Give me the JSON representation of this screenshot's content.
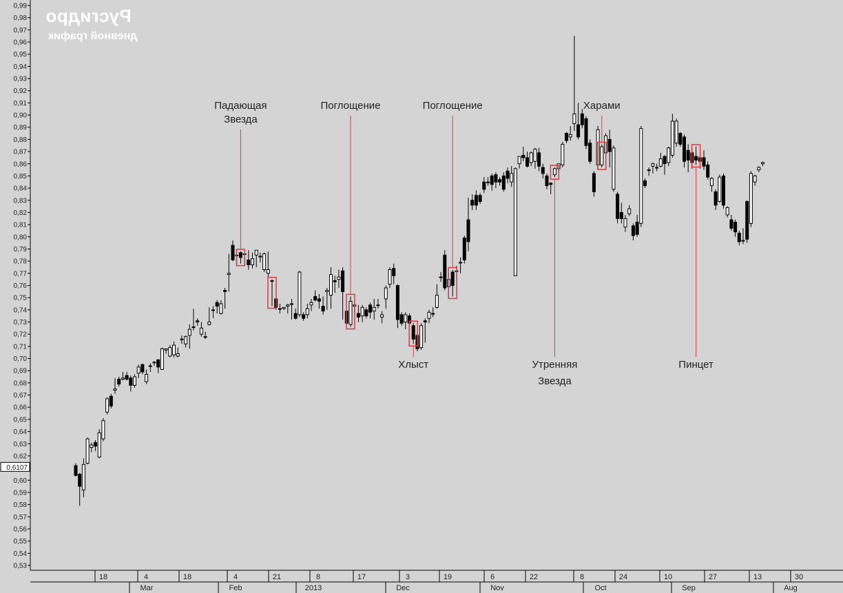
{
  "title": "Русгидро",
  "subtitle": "дневной график",
  "colors": {
    "background": "#d4d4d4",
    "bull_fill": "#ffffff",
    "bear_fill": "#000000",
    "annotation": "#e03a3a",
    "axis": "#000000"
  },
  "chart_data": {
    "type": "candlestick",
    "title": "Русгидро",
    "subtitle": "дневной график",
    "mirrored": true,
    "ylim": [
      0.53,
      0.99
    ],
    "y_ticks": [
      "0,99",
      "0,98",
      "0,97",
      "0,96",
      "0,95",
      "0,94",
      "0,93",
      "0,92",
      "0,91",
      "0,90",
      "0,89",
      "0,88",
      "0,87",
      "0,86",
      "0,85",
      "0,84",
      "0,83",
      "0,82",
      "0,81",
      "0,80",
      "0,79",
      "0,78",
      "0,77",
      "0,76",
      "0,75",
      "0,74",
      "0,73",
      "0,72",
      "0,71",
      "0,70",
      "0,69",
      "0,68",
      "0,67",
      "0,66",
      "0,65",
      "0,64",
      "0,63",
      "0,62",
      "0,61",
      "0,60",
      "0,59",
      "0,58",
      "0,57",
      "0,56",
      "0,55",
      "0,54",
      "0,53"
    ],
    "current_price_label": "0,6107",
    "current_price": 0.6107,
    "day_ticks": [
      "30",
      "13",
      "27",
      "10",
      "24",
      "8",
      "22",
      "6",
      "19",
      "3",
      "17",
      "8",
      "21",
      "4",
      "18",
      "4",
      "18"
    ],
    "month_labels": [
      "Aug",
      "Sep",
      "Oct",
      "Nov",
      "Dec",
      "2013",
      "Feb",
      "Mar"
    ],
    "candles": [
      [
        0.612,
        0.604,
        0.614,
        0.603
      ],
      [
        0.605,
        0.595,
        0.606,
        0.579
      ],
      [
        0.592,
        0.613,
        0.618,
        0.586
      ],
      [
        0.614,
        0.634,
        0.635,
        0.613
      ],
      [
        0.627,
        0.629,
        0.631,
        0.623
      ],
      [
        0.631,
        0.628,
        0.633,
        0.624
      ],
      [
        0.619,
        0.639,
        0.642,
        0.618
      ],
      [
        0.634,
        0.649,
        0.651,
        0.632
      ],
      [
        0.656,
        0.667,
        0.668,
        0.654
      ],
      [
        0.669,
        0.661,
        0.671,
        0.659
      ],
      [
        0.674,
        0.675,
        0.684,
        0.671
      ],
      [
        0.683,
        0.679,
        0.685,
        0.677
      ],
      [
        0.683,
        0.684,
        0.689,
        0.682
      ],
      [
        0.686,
        0.683,
        0.689,
        0.682
      ],
      [
        0.684,
        0.678,
        0.686,
        0.673
      ],
      [
        0.678,
        0.685,
        0.687,
        0.676
      ],
      [
        0.688,
        0.693,
        0.695,
        0.684
      ],
      [
        0.695,
        0.689,
        0.696,
        0.687
      ],
      [
        0.681,
        0.687,
        0.691,
        0.679
      ],
      [
        0.694,
        0.694,
        0.696,
        0.689
      ],
      [
        0.697,
        0.697,
        0.698,
        0.694
      ],
      [
        0.699,
        0.693,
        0.699,
        0.688
      ],
      [
        0.691,
        0.708,
        0.709,
        0.691
      ],
      [
        0.707,
        0.708,
        0.708,
        0.704
      ],
      [
        0.702,
        0.709,
        0.711,
        0.701
      ],
      [
        0.703,
        0.711,
        0.714,
        0.701
      ],
      [
        0.702,
        0.704,
        0.709,
        0.701
      ],
      [
        0.716,
        0.716,
        0.719,
        0.712
      ],
      [
        0.712,
        0.718,
        0.719,
        0.709
      ],
      [
        0.719,
        0.724,
        0.728,
        0.708
      ],
      [
        0.726,
        0.726,
        0.741,
        0.723
      ],
      [
        0.731,
        0.73,
        0.733,
        0.727
      ],
      [
        0.72,
        0.725,
        0.73,
        0.718
      ],
      [
        0.718,
        0.718,
        0.722,
        0.716
      ],
      [
        0.728,
        0.73,
        0.742,
        0.727
      ],
      [
        0.74,
        0.74,
        0.743,
        0.733
      ],
      [
        0.746,
        0.743,
        0.748,
        0.737
      ],
      [
        0.737,
        0.745,
        0.748,
        0.736
      ],
      [
        0.756,
        0.755,
        0.758,
        0.741
      ],
      [
        0.769,
        0.77,
        0.786,
        0.755
      ],
      [
        0.793,
        0.781,
        0.797,
        0.78
      ],
      [
        0.785,
        0.785,
        0.789,
        0.778
      ],
      [
        0.787,
        0.783,
        0.788,
        0.778
      ],
      [
        0.786,
        0.786,
        0.787,
        0.777
      ],
      [
        0.781,
        0.777,
        0.789,
        0.773
      ],
      [
        0.777,
        0.782,
        0.787,
        0.774
      ],
      [
        0.785,
        0.789,
        0.789,
        0.775
      ],
      [
        0.784,
        0.784,
        0.787,
        0.779
      ],
      [
        0.773,
        0.786,
        0.787,
        0.771
      ],
      [
        0.77,
        0.773,
        0.788,
        0.767
      ],
      [
        0.764,
        0.764,
        0.765,
        0.743
      ],
      [
        0.749,
        0.742,
        0.749,
        0.74
      ],
      [
        0.741,
        0.741,
        0.745,
        0.737
      ],
      [
        0.741,
        0.742,
        0.742,
        0.74
      ],
      [
        0.743,
        0.744,
        0.745,
        0.737
      ],
      [
        0.745,
        0.745,
        0.749,
        0.732
      ],
      [
        0.737,
        0.733,
        0.741,
        0.732
      ],
      [
        0.736,
        0.771,
        0.772,
        0.734
      ],
      [
        0.736,
        0.733,
        0.738,
        0.731
      ],
      [
        0.736,
        0.741,
        0.745,
        0.733
      ],
      [
        0.744,
        0.746,
        0.749,
        0.739
      ],
      [
        0.751,
        0.748,
        0.756,
        0.747
      ],
      [
        0.749,
        0.747,
        0.753,
        0.741
      ],
      [
        0.743,
        0.739,
        0.751,
        0.736
      ],
      [
        0.755,
        0.756,
        0.758,
        0.74
      ],
      [
        0.752,
        0.769,
        0.775,
        0.741
      ],
      [
        0.764,
        0.763,
        0.768,
        0.754
      ],
      [
        0.765,
        0.767,
        0.773,
        0.758
      ],
      [
        0.772,
        0.755,
        0.775,
        0.732
      ],
      [
        0.739,
        0.729,
        0.739,
        0.728
      ],
      [
        0.728,
        0.747,
        0.751,
        0.726
      ],
      [
        0.743,
        0.744,
        0.746,
        0.738
      ],
      [
        0.737,
        0.734,
        0.744,
        0.73
      ],
      [
        0.735,
        0.742,
        0.744,
        0.73
      ],
      [
        0.74,
        0.735,
        0.742,
        0.733
      ],
      [
        0.744,
        0.738,
        0.746,
        0.733
      ],
      [
        0.739,
        0.742,
        0.749,
        0.732
      ],
      [
        0.744,
        0.744,
        0.749,
        0.741
      ],
      [
        0.734,
        0.736,
        0.739,
        0.729
      ],
      [
        0.749,
        0.758,
        0.76,
        0.741
      ],
      [
        0.761,
        0.773,
        0.775,
        0.758
      ],
      [
        0.774,
        0.768,
        0.778,
        0.761
      ],
      [
        0.76,
        0.732,
        0.761,
        0.725
      ],
      [
        0.736,
        0.729,
        0.738,
        0.727
      ],
      [
        0.73,
        0.736,
        0.738,
        0.724
      ],
      [
        0.735,
        0.729,
        0.737,
        0.722
      ],
      [
        0.727,
        0.716,
        0.729,
        0.712
      ],
      [
        0.719,
        0.708,
        0.721,
        0.706
      ],
      [
        0.709,
        0.727,
        0.729,
        0.707
      ],
      [
        0.731,
        0.73,
        0.733,
        0.713
      ],
      [
        0.733,
        0.738,
        0.74,
        0.729
      ],
      [
        0.737,
        0.737,
        0.742,
        0.734
      ],
      [
        0.742,
        0.752,
        0.761,
        0.741
      ],
      [
        0.767,
        0.767,
        0.771,
        0.763
      ],
      [
        0.785,
        0.758,
        0.789,
        0.756
      ],
      [
        0.759,
        0.765,
        0.77,
        0.749
      ],
      [
        0.771,
        0.76,
        0.773,
        0.751
      ],
      [
        0.772,
        0.772,
        0.776,
        0.764
      ],
      [
        0.779,
        0.779,
        0.783,
        0.77
      ],
      [
        0.799,
        0.781,
        0.801,
        0.778
      ],
      [
        0.814,
        0.796,
        0.832,
        0.788
      ],
      [
        0.83,
        0.826,
        0.835,
        0.822
      ],
      [
        0.834,
        0.826,
        0.838,
        0.822
      ],
      [
        0.834,
        0.829,
        0.836,
        0.827
      ],
      [
        0.845,
        0.839,
        0.849,
        0.836
      ],
      [
        0.845,
        0.845,
        0.849,
        0.842
      ],
      [
        0.85,
        0.843,
        0.852,
        0.838
      ],
      [
        0.851,
        0.845,
        0.853,
        0.84
      ],
      [
        0.847,
        0.845,
        0.849,
        0.842
      ],
      [
        0.85,
        0.839,
        0.853,
        0.837
      ],
      [
        0.854,
        0.848,
        0.857,
        0.844
      ],
      [
        0.845,
        0.852,
        0.858,
        0.841
      ],
      [
        0.768,
        0.856,
        0.857,
        0.768
      ],
      [
        0.86,
        0.866,
        0.866,
        0.856
      ],
      [
        0.867,
        0.865,
        0.874,
        0.862
      ],
      [
        0.865,
        0.858,
        0.87,
        0.857
      ],
      [
        0.861,
        0.869,
        0.87,
        0.858
      ],
      [
        0.862,
        0.872,
        0.873,
        0.856
      ],
      [
        0.869,
        0.858,
        0.873,
        0.854
      ],
      [
        0.857,
        0.852,
        0.86,
        0.848
      ],
      [
        0.85,
        0.842,
        0.852,
        0.839
      ],
      [
        0.844,
        0.843,
        0.845,
        0.835
      ],
      [
        0.851,
        0.856,
        0.857,
        0.849
      ],
      [
        0.856,
        0.86,
        0.86,
        0.853
      ],
      [
        0.859,
        0.876,
        0.878,
        0.857
      ],
      [
        0.885,
        0.879,
        0.886,
        0.877
      ],
      [
        0.882,
        0.884,
        0.891,
        0.879
      ],
      [
        0.893,
        0.901,
        0.965,
        0.887
      ],
      [
        0.892,
        0.882,
        0.91,
        0.88
      ],
      [
        0.901,
        0.892,
        0.905,
        0.889
      ],
      [
        0.897,
        0.875,
        0.899,
        0.872
      ],
      [
        0.877,
        0.862,
        0.88,
        0.86
      ],
      [
        0.852,
        0.837,
        0.854,
        0.833
      ],
      [
        0.859,
        0.888,
        0.891,
        0.856
      ],
      [
        0.859,
        0.874,
        0.876,
        0.857
      ],
      [
        0.869,
        0.883,
        0.885,
        0.866
      ],
      [
        0.88,
        0.87,
        0.888,
        0.857
      ],
      [
        0.839,
        0.873,
        0.875,
        0.837
      ],
      [
        0.835,
        0.815,
        0.837,
        0.811
      ],
      [
        0.82,
        0.815,
        0.828,
        0.811
      ],
      [
        0.808,
        0.815,
        0.818,
        0.804
      ],
      [
        0.819,
        0.823,
        0.826,
        0.817
      ],
      [
        0.809,
        0.801,
        0.811,
        0.797
      ],
      [
        0.812,
        0.802,
        0.818,
        0.8
      ],
      [
        0.811,
        0.889,
        0.891,
        0.808
      ],
      [
        0.846,
        0.842,
        0.848,
        0.84
      ],
      [
        0.855,
        0.855,
        0.857,
        0.85
      ],
      [
        0.858,
        0.86,
        0.861,
        0.852
      ],
      [
        0.857,
        0.857,
        0.86,
        0.854
      ],
      [
        0.858,
        0.864,
        0.869,
        0.857
      ],
      [
        0.866,
        0.86,
        0.867,
        0.851
      ],
      [
        0.861,
        0.873,
        0.874,
        0.858
      ],
      [
        0.867,
        0.895,
        0.901,
        0.865
      ],
      [
        0.877,
        0.895,
        0.897,
        0.874
      ],
      [
        0.885,
        0.876,
        0.886,
        0.874
      ],
      [
        0.882,
        0.862,
        0.884,
        0.857
      ],
      [
        0.871,
        0.863,
        0.876,
        0.853
      ],
      [
        0.869,
        0.861,
        0.872,
        0.856
      ],
      [
        0.866,
        0.863,
        0.874,
        0.859
      ],
      [
        0.865,
        0.862,
        0.867,
        0.856
      ],
      [
        0.865,
        0.858,
        0.871,
        0.855
      ],
      [
        0.859,
        0.849,
        0.862,
        0.847
      ],
      [
        0.842,
        0.848,
        0.849,
        0.837
      ],
      [
        0.837,
        0.826,
        0.839,
        0.822
      ],
      [
        0.829,
        0.849,
        0.851,
        0.828
      ],
      [
        0.85,
        0.826,
        0.852,
        0.823
      ],
      [
        0.818,
        0.824,
        0.825,
        0.816
      ],
      [
        0.814,
        0.807,
        0.818,
        0.805
      ],
      [
        0.812,
        0.804,
        0.814,
        0.8
      ],
      [
        0.803,
        0.796,
        0.805,
        0.793
      ],
      [
        0.797,
        0.797,
        0.807,
        0.794
      ],
      [
        0.829,
        0.798,
        0.83,
        0.795
      ],
      [
        0.811,
        0.852,
        0.854,
        0.808
      ],
      [
        0.845,
        0.85,
        0.851,
        0.842
      ],
      [
        0.855,
        0.857,
        0.858,
        0.853
      ],
      [
        0.86,
        0.861,
        0.862,
        0.858
      ]
    ],
    "annotations": [
      {
        "label": "Падающая\nЗвезда",
        "candle": 42
      },
      {
        "label": "",
        "candle": 50
      },
      {
        "label": "Поглощение",
        "candle": 70
      },
      {
        "label": "Поглощение",
        "candle": 96
      },
      {
        "label": "Харами",
        "candle": 134
      },
      {
        "label": "Поглощение",
        "candle": 176
      },
      {
        "label": "Утренняя\nЗвезда",
        "candle": 122
      },
      {
        "label": "Хлыст",
        "candle": 86
      },
      {
        "label": "Пинцет",
        "candle": 158
      },
      {
        "label": "Хлыст",
        "candle": 181
      }
    ]
  }
}
